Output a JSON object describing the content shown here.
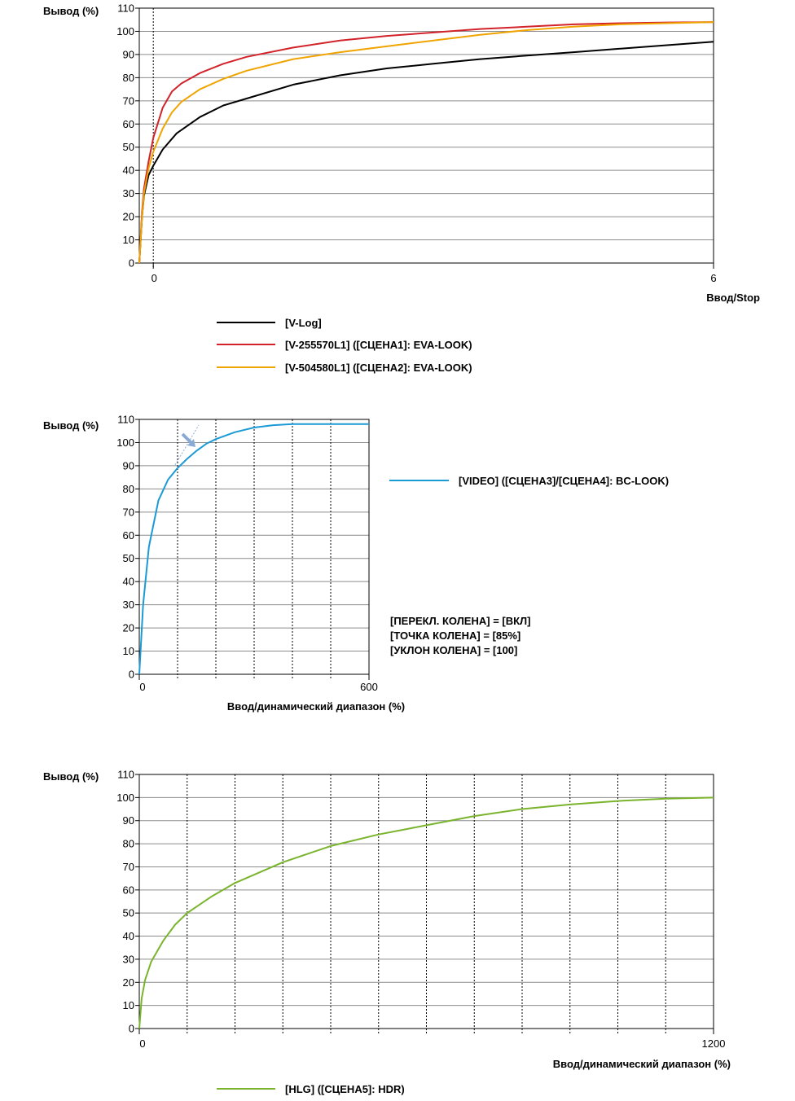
{
  "chart_data": [
    {
      "type": "line",
      "ylabel": "Вывод (%)",
      "xlabel": "Ввод/Stop",
      "ylim": [
        0,
        110
      ],
      "y_ticks": [
        "0",
        "10",
        "20",
        "30",
        "40",
        "50",
        "60",
        "70",
        "80",
        "90",
        "100",
        "110"
      ],
      "x_ticks": [
        "0",
        "6"
      ],
      "grid": "horizontal solid, vertical dotted at 0",
      "legend_position": "bottom",
      "series": [
        {
          "name": "[V-Log]",
          "color": "#000000",
          "x": [
            -0.15,
            -0.12,
            -0.1,
            -0.05,
            0,
            0.1,
            0.25,
            0.5,
            0.75,
            1,
            1.5,
            2,
            2.5,
            3,
            3.5,
            4,
            4.5,
            5,
            5.5,
            6
          ],
          "y": [
            0,
            20,
            29,
            38,
            42,
            49,
            56,
            63,
            68,
            71,
            77,
            81,
            84,
            86,
            88,
            89.5,
            91,
            92.5,
            94,
            95.5
          ]
        },
        {
          "name": "[V-255570L1] ([СЦЕНА1]: EVA-LOOK)",
          "color": "#d2232a",
          "x": [
            -0.15,
            -0.12,
            -0.1,
            -0.05,
            0,
            0.1,
            0.2,
            0.3,
            0.5,
            0.75,
            1,
            1.5,
            2,
            2.5,
            3,
            3.5,
            4,
            4.5,
            5,
            5.5,
            6
          ],
          "y": [
            0,
            22,
            32,
            44,
            54,
            67,
            74,
            77.5,
            82,
            86,
            89,
            93,
            96,
            98,
            99.5,
            101,
            102,
            103,
            103.5,
            103.8,
            104
          ]
        },
        {
          "name": "[V-504580L1] ([СЦЕНА2]: EVA-LOOK)",
          "color": "#f0a400",
          "x": [
            -0.15,
            -0.12,
            -0.1,
            -0.05,
            0,
            0.1,
            0.2,
            0.3,
            0.5,
            0.75,
            1,
            1.5,
            2,
            2.5,
            3,
            3.5,
            4,
            4.5,
            5,
            5.5,
            6
          ],
          "y": [
            0,
            20,
            30,
            41,
            48,
            58,
            65,
            69.5,
            75,
            79.5,
            83,
            88,
            91,
            93.5,
            96,
            98.5,
            100.5,
            102,
            103,
            103.5,
            104
          ]
        }
      ]
    },
    {
      "type": "line",
      "ylabel": "Вывод (%)",
      "xlabel": "Ввод/динамический диапазон (%)",
      "ylim": [
        0,
        110
      ],
      "xlim": [
        0,
        600
      ],
      "y_ticks": [
        "0",
        "10",
        "20",
        "30",
        "40",
        "50",
        "60",
        "70",
        "80",
        "90",
        "100",
        "110"
      ],
      "x_ticks": [
        "0",
        "600"
      ],
      "grid": "horizontal solid, vertical dotted",
      "annotations": [
        "[ПЕРЕКЛ. КОЛЕНА] = [ВКЛ]",
        "[ТОЧКА КОЛЕНА] = [85%]",
        "[УКЛОН КОЛЕНА] = [100]"
      ],
      "series": [
        {
          "name": "[VIDEO] ([СЦЕНА3]/[СЦЕНА4]: BC-LOOK)",
          "color": "#1b9ad6",
          "x": [
            0,
            10,
            25,
            50,
            75,
            100,
            125,
            150,
            175,
            200,
            250,
            300,
            350,
            400,
            450,
            500,
            550,
            600
          ],
          "y": [
            0,
            30,
            55,
            75,
            84,
            89,
            93,
            96.5,
            99.5,
            101.5,
            104.5,
            106.5,
            107.5,
            108,
            108,
            108,
            108,
            108
          ]
        }
      ]
    },
    {
      "type": "line",
      "ylabel": "Вывод (%)",
      "xlabel": "Ввод/динамический диапазон (%)",
      "ylim": [
        0,
        110
      ],
      "xlim": [
        0,
        1200
      ],
      "y_ticks": [
        "0",
        "10",
        "20",
        "30",
        "40",
        "50",
        "60",
        "70",
        "80",
        "90",
        "100",
        "110"
      ],
      "x_ticks": [
        "0",
        "1200"
      ],
      "grid": "horizontal solid, vertical dotted",
      "legend_position": "bottom",
      "series": [
        {
          "name": "[HLG] ([СЦЕНА5]: HDR)",
          "color": "#7ab42d",
          "x": [
            0,
            5,
            12,
            25,
            50,
            75,
            100,
            150,
            200,
            300,
            400,
            500,
            600,
            700,
            800,
            900,
            1000,
            1100,
            1200
          ],
          "y": [
            0,
            13,
            21,
            29,
            38,
            45,
            50,
            57,
            63,
            72,
            79,
            84,
            88,
            92,
            95,
            97,
            98.5,
            99.5,
            100
          ]
        }
      ]
    }
  ]
}
